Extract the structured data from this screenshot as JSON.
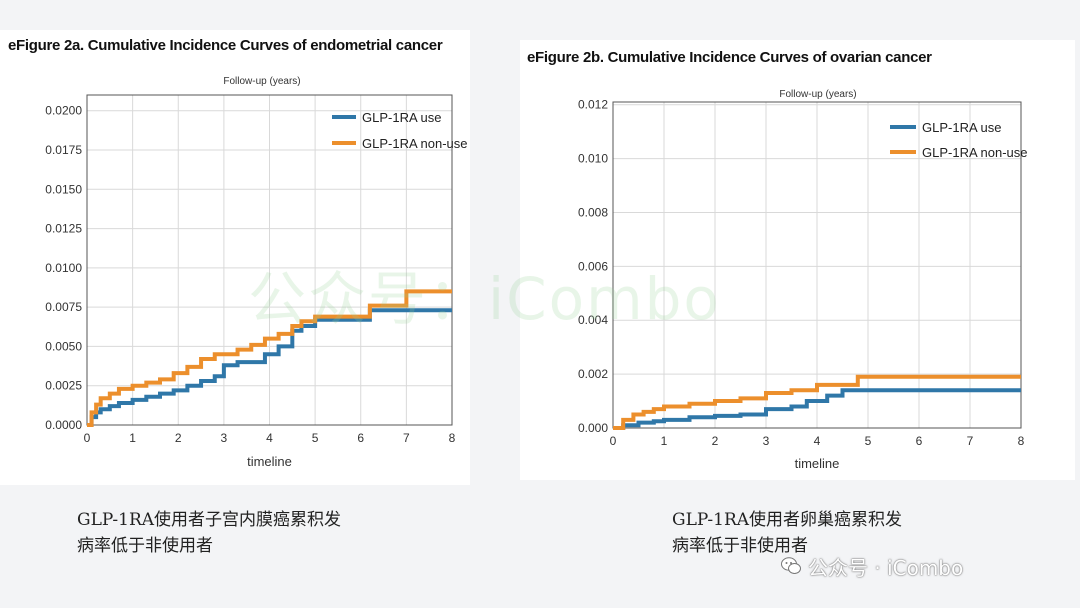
{
  "colors": {
    "use": "#2f77a8",
    "nonuse": "#ec8f2c",
    "grid": "#d9d9d9",
    "frame": "#555555"
  },
  "chart_data": [
    {
      "type": "line",
      "title": "eFigure 2a. Cumulative Incidence Curves of endometrial cancer",
      "top_label": "Follow-up (years)",
      "xlabel": "timeline",
      "xlim": [
        0,
        8
      ],
      "ylim": [
        0,
        0.021
      ],
      "xticks": [
        0,
        1,
        2,
        3,
        4,
        5,
        6,
        7,
        8
      ],
      "xtick_labels": [
        "0",
        "1",
        "2",
        "3",
        "4",
        "5",
        "6",
        "7",
        "8"
      ],
      "yticks": [
        0,
        0.0025,
        0.005,
        0.0075,
        0.01,
        0.0125,
        0.015,
        0.0175,
        0.02
      ],
      "ytick_labels": [
        "0.0000",
        "0.0025",
        "0.0050",
        "0.0075",
        "0.0100",
        "0.0125",
        "0.0150",
        "0.0175",
        "0.0200"
      ],
      "grid": true,
      "legend": "top-right",
      "series": [
        {
          "name": "GLP-1RA use",
          "color_key": "use",
          "x": [
            0,
            0.1,
            0.2,
            0.3,
            0.5,
            0.7,
            1.0,
            1.3,
            1.6,
            1.9,
            2.2,
            2.5,
            2.8,
            3.0,
            3.3,
            3.6,
            3.9,
            4.2,
            4.5,
            4.7,
            5.0,
            5.5,
            6.0,
            6.2,
            7.0,
            8.0
          ],
          "y": [
            0,
            0.0005,
            0.0008,
            0.001,
            0.0012,
            0.0014,
            0.0016,
            0.0018,
            0.002,
            0.0022,
            0.0025,
            0.0028,
            0.0031,
            0.0038,
            0.004,
            0.004,
            0.0045,
            0.005,
            0.006,
            0.0063,
            0.0067,
            0.0067,
            0.0067,
            0.0073,
            0.0073,
            0.0073
          ]
        },
        {
          "name": "GLP-1RA non-use",
          "color_key": "nonuse",
          "x": [
            0,
            0.1,
            0.2,
            0.3,
            0.5,
            0.7,
            1.0,
            1.3,
            1.6,
            1.9,
            2.2,
            2.5,
            2.8,
            3.0,
            3.3,
            3.6,
            3.9,
            4.2,
            4.5,
            4.7,
            5.0,
            5.5,
            6.0,
            6.2,
            6.8,
            7.0,
            8.0
          ],
          "y": [
            0,
            0.0008,
            0.0013,
            0.0017,
            0.002,
            0.0023,
            0.0025,
            0.0027,
            0.0029,
            0.0033,
            0.0037,
            0.0042,
            0.0045,
            0.0045,
            0.0048,
            0.0051,
            0.0055,
            0.0058,
            0.0063,
            0.0066,
            0.0069,
            0.0069,
            0.0069,
            0.0076,
            0.0076,
            0.0085,
            0.0085
          ]
        }
      ]
    },
    {
      "type": "line",
      "title": "eFigure 2b. Cumulative Incidence Curves of ovarian cancer",
      "top_label": "Follow-up (years)",
      "xlabel": "timeline",
      "xlim": [
        0,
        8
      ],
      "ylim": [
        0,
        0.0121
      ],
      "xticks": [
        0,
        1,
        2,
        3,
        4,
        5,
        6,
        7,
        8
      ],
      "xtick_labels": [
        "0",
        "1",
        "2",
        "3",
        "4",
        "5",
        "6",
        "7",
        "8"
      ],
      "yticks": [
        0,
        0.002,
        0.004,
        0.006,
        0.008,
        0.01,
        0.012
      ],
      "ytick_labels": [
        "0.000",
        "0.002",
        "0.004",
        "0.006",
        "0.008",
        "0.010",
        "0.012"
      ],
      "grid": true,
      "legend": "top-right",
      "series": [
        {
          "name": "GLP-1RA use",
          "color_key": "use",
          "x": [
            0,
            0.2,
            0.5,
            0.8,
            1.0,
            1.5,
            2.0,
            2.5,
            3.0,
            3.5,
            3.8,
            4.2,
            4.5,
            5.0,
            6.0,
            7.0,
            8.0
          ],
          "y": [
            0,
            0.0001,
            0.0002,
            0.00025,
            0.0003,
            0.0004,
            0.00045,
            0.0005,
            0.0007,
            0.0008,
            0.001,
            0.0012,
            0.0014,
            0.0014,
            0.0014,
            0.0014,
            0.0014
          ]
        },
        {
          "name": "GLP-1RA non-use",
          "color_key": "nonuse",
          "x": [
            0,
            0.2,
            0.4,
            0.6,
            0.8,
            1.0,
            1.5,
            2.0,
            2.5,
            3.0,
            3.5,
            4.0,
            4.5,
            4.8,
            5.0,
            6.0,
            7.0,
            8.0
          ],
          "y": [
            0,
            0.0003,
            0.0005,
            0.0006,
            0.0007,
            0.0008,
            0.0009,
            0.001,
            0.0011,
            0.0013,
            0.0014,
            0.0016,
            0.0016,
            0.0019,
            0.0019,
            0.0019,
            0.0019,
            0.0019
          ]
        }
      ]
    }
  ],
  "captions": {
    "a": "GLP-1RA使用者子宫内膜癌累积发\n病率低于非使用者",
    "b": "GLP-1RA使用者卵巢癌累积发\n病率低于非使用者"
  },
  "watermark": "公众号：iCombo",
  "badge": {
    "text": "公众号 · iCombo",
    "icon": "wechat-icon"
  }
}
